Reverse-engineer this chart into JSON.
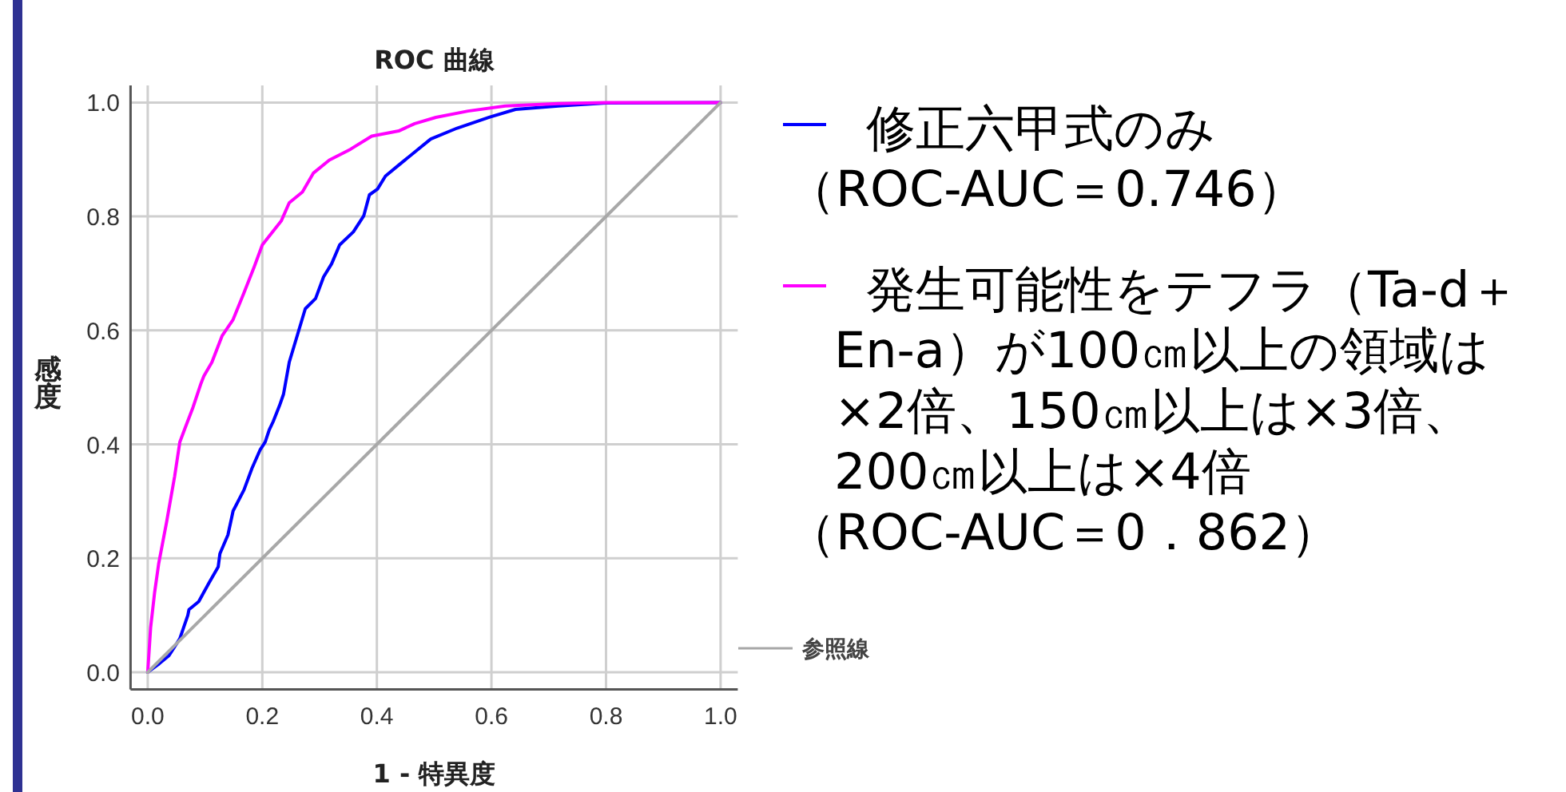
{
  "chart_data": {
    "type": "line",
    "title": "ROC 曲線",
    "xlabel": "1 - 特異度",
    "ylabel": "感度",
    "xlim": [
      -0.03,
      1.03
    ],
    "ylim": [
      -0.03,
      1.03
    ],
    "xticks": [
      {
        "value": 0,
        "label": "0.0"
      },
      0.2,
      0.4,
      0.6,
      0.8,
      {
        "value": 1,
        "label": "1.0"
      }
    ],
    "yticks": [
      {
        "value": 0,
        "label": "0.0"
      },
      0.2,
      0.4,
      0.6,
      0.8,
      {
        "value": 1,
        "label": "1.0"
      }
    ],
    "grid": true,
    "legend": "right",
    "marker": "none",
    "line_style": "solid",
    "annotations": [
      "（ROC-AUC＝0.746）",
      "（ROC-AUC＝0．862）"
    ],
    "series": [
      {
        "name": "修正六甲式のみ",
        "color": "#0000ff",
        "x": [
          0,
          0.02,
          0.037,
          0.056,
          0.07,
          0.072,
          0.089,
          0.107,
          0.123,
          0.126,
          0.14,
          0.149,
          0.168,
          0.182,
          0.196,
          0.205,
          0.212,
          0.219,
          0.23,
          0.237,
          0.247,
          0.261,
          0.275,
          0.293,
          0.307,
          0.321,
          0.335,
          0.359,
          0.377,
          0.387,
          0.401,
          0.415,
          0.438,
          0.466,
          0.494,
          0.54,
          0.596,
          0.642,
          0.717,
          0.8,
          1
        ],
        "values": [
          0,
          0.015,
          0.029,
          0.059,
          0.1,
          0.11,
          0.124,
          0.157,
          0.185,
          0.208,
          0.241,
          0.283,
          0.32,
          0.358,
          0.39,
          0.404,
          0.425,
          0.44,
          0.468,
          0.488,
          0.544,
          0.591,
          0.638,
          0.656,
          0.694,
          0.717,
          0.75,
          0.773,
          0.801,
          0.838,
          0.848,
          0.871,
          0.89,
          0.913,
          0.936,
          0.955,
          0.974,
          0.988,
          0.994,
          0.999,
          1
        ]
      },
      {
        "name": "発生可能性をテフラ（Ta-d＋En-a）が100㎝以上の領域は×2倍、150㎝以上は×3倍、200㎝以上は×4倍",
        "color": "#ff00ff",
        "x": [
          0,
          0.005,
          0.012,
          0.019,
          0.033,
          0.047,
          0.056,
          0.065,
          0.079,
          0.093,
          0.098,
          0.112,
          0.13,
          0.149,
          0.168,
          0.186,
          0.2,
          0.214,
          0.233,
          0.247,
          0.27,
          0.289,
          0.317,
          0.354,
          0.391,
          0.438,
          0.466,
          0.503,
          0.559,
          0.624,
          0.717,
          0.8,
          1
        ],
        "values": [
          0,
          0.078,
          0.14,
          0.19,
          0.264,
          0.344,
          0.404,
          0.428,
          0.465,
          0.507,
          0.52,
          0.544,
          0.591,
          0.619,
          0.666,
          0.712,
          0.75,
          0.768,
          0.792,
          0.824,
          0.843,
          0.876,
          0.899,
          0.918,
          0.941,
          0.95,
          0.963,
          0.974,
          0.985,
          0.994,
          0.998,
          1,
          1
        ]
      },
      {
        "name": "参照線",
        "color": "#a8a8a8",
        "x": [
          0,
          1
        ],
        "values": [
          0,
          1
        ]
      }
    ]
  }
}
